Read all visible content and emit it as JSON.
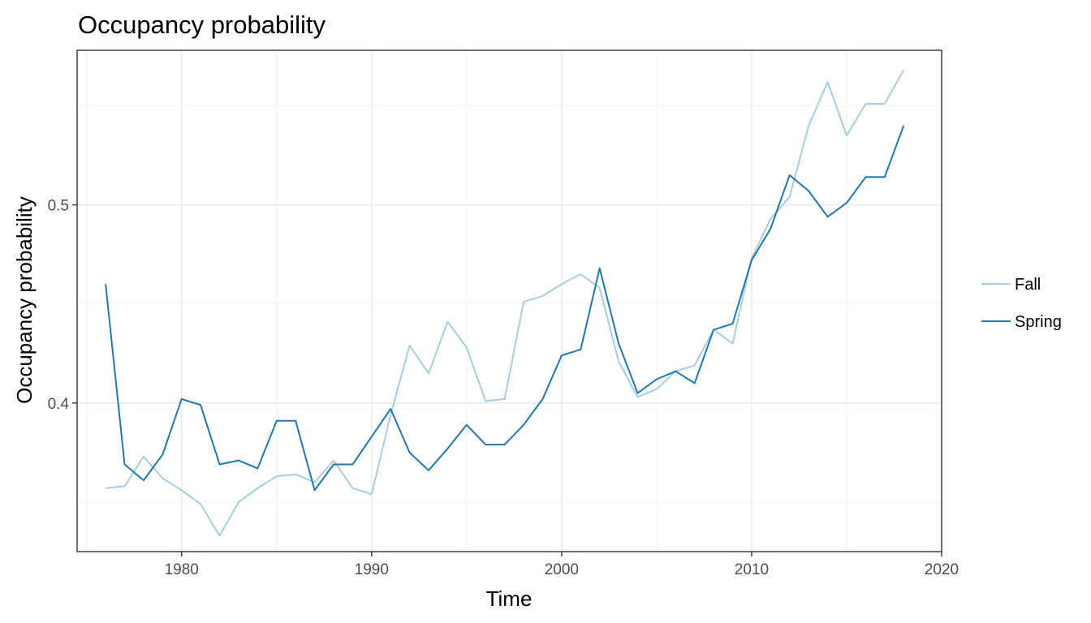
{
  "chart_data": {
    "type": "line",
    "title": "Occupancy probability",
    "xlabel": "Time",
    "ylabel": "Occupancy probability",
    "xlim": [
      1974.5,
      2020
    ],
    "ylim": [
      0.325,
      0.578
    ],
    "x_ticks": [
      1980,
      1990,
      2000,
      2010,
      2020
    ],
    "x_tick_labels": [
      "1980",
      "1990",
      "2000",
      "2010",
      "2020"
    ],
    "y_ticks": [
      0.4,
      0.5
    ],
    "y_tick_labels": [
      "0.4",
      "0.5"
    ],
    "x_minor_grid": [
      1975,
      1985,
      1995,
      2005,
      2015
    ],
    "y_minor_grid": [
      0.35,
      0.45,
      0.55
    ],
    "grid": true,
    "legend_position": "right",
    "x": [
      1976,
      1977,
      1978,
      1979,
      1980,
      1981,
      1982,
      1983,
      1984,
      1985,
      1986,
      1987,
      1988,
      1989,
      1990,
      1991,
      1992,
      1993,
      1994,
      1995,
      1996,
      1997,
      1998,
      1999,
      2000,
      2001,
      2002,
      2003,
      2004,
      2005,
      2006,
      2007,
      2008,
      2009,
      2010,
      2011,
      2012,
      2013,
      2014,
      2015,
      2016,
      2017,
      2018
    ],
    "series": [
      {
        "name": "Fall",
        "color": "#a6cee3",
        "values": [
          0.357,
          0.358,
          0.373,
          0.362,
          0.356,
          0.349,
          0.333,
          0.35,
          0.357,
          0.363,
          0.364,
          0.36,
          0.371,
          0.357,
          0.354,
          0.394,
          0.429,
          0.415,
          0.441,
          0.428,
          0.401,
          0.402,
          0.451,
          0.454,
          0.46,
          0.465,
          0.458,
          0.421,
          0.403,
          0.407,
          0.416,
          0.419,
          0.437,
          0.43,
          0.473,
          0.493,
          0.504,
          0.54,
          0.562,
          0.535,
          0.551,
          0.551,
          0.568
        ]
      },
      {
        "name": "Spring",
        "color": "#1f78b4",
        "values": [
          0.46,
          0.369,
          0.361,
          0.374,
          0.402,
          0.399,
          0.369,
          0.371,
          0.367,
          0.391,
          0.391,
          0.356,
          0.369,
          0.369,
          0.383,
          0.397,
          0.375,
          0.366,
          0.377,
          0.389,
          0.379,
          0.379,
          0.389,
          0.402,
          0.424,
          0.427,
          0.468,
          0.43,
          0.405,
          0.412,
          0.416,
          0.41,
          0.437,
          0.44,
          0.472,
          0.488,
          0.515,
          0.507,
          0.494,
          0.501,
          0.514,
          0.514,
          0.54
        ]
      }
    ]
  }
}
